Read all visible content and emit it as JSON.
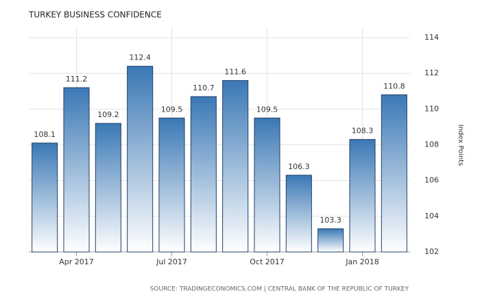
{
  "chart_data": {
    "type": "bar",
    "title": "TURKEY BUSINESS CONFIDENCE",
    "categories": [
      null,
      "Apr 2017",
      null,
      null,
      "Jul 2017",
      null,
      null,
      "Oct 2017",
      null,
      null,
      "Jan 2018",
      null
    ],
    "values": [
      108.1,
      111.2,
      109.2,
      112.4,
      109.5,
      110.7,
      111.6,
      109.5,
      106.3,
      103.3,
      108.3,
      110.8
    ],
    "color": "#3b78b5",
    "ylim": [
      102,
      114
    ],
    "yticks": [
      102,
      104,
      106,
      108,
      110,
      112,
      114
    ],
    "y_axis_label": "Index Points",
    "grid": true,
    "source": "SOURCE: TRADINGECONOMICS.COM | CENTRAL BANK OF THE REPUBLIC OF TURKEY"
  }
}
